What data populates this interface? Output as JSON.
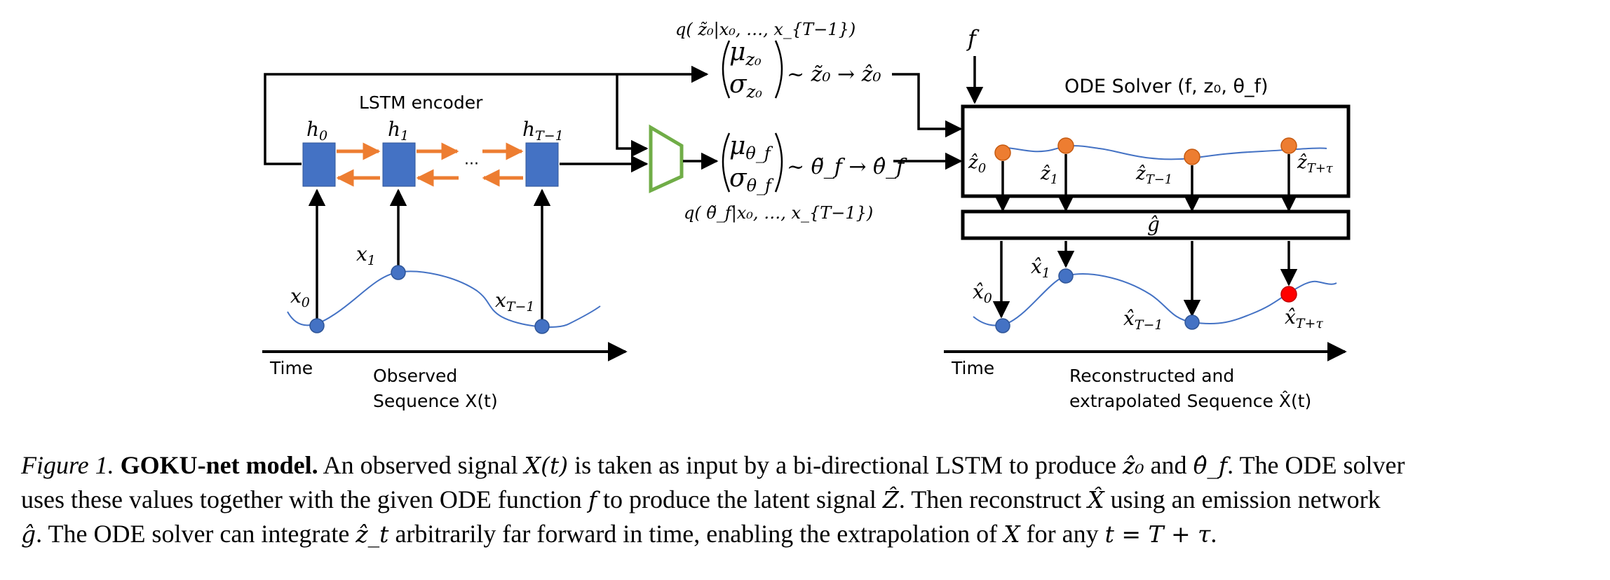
{
  "figure": {
    "lstm_title": "LSTM encoder",
    "hidden_states": [
      "h",
      "h",
      "h"
    ],
    "hidden_subs": [
      "0",
      "1",
      "T−1"
    ],
    "ellipsis": "···",
    "obs_labels": [
      "x",
      "x",
      "x"
    ],
    "obs_subs": [
      "0",
      "1",
      "T−1"
    ],
    "q_z0": "q( z̃₀|x₀, …, x_{T−1})",
    "q_theta": "q( θ̃_f|x₀, …, x_{T−1})",
    "mu_z0": "μ",
    "mu_z0_sub": "z₀",
    "sigma_z0": "σ",
    "sigma_z0_sub": "z₀",
    "sample_z0": "~ z̃₀ → ẑ₀",
    "mu_theta": "μ",
    "mu_theta_sub": "θ_f",
    "sigma_theta": "σ",
    "sigma_theta_sub": "θ_f",
    "sample_theta": "~ θ̃_f → θ̂_f",
    "f_label": "f",
    "ode_title": "ODE Solver (f, z₀, θ_f)",
    "latent_labels": [
      "ẑ",
      "ẑ",
      "ẑ",
      "ẑ"
    ],
    "latent_subs": [
      "0",
      "1",
      "T−1",
      "T+τ"
    ],
    "emission_label": "ĝ",
    "recon_labels": [
      "x̂",
      "x̂",
      "x̂",
      "x̂"
    ],
    "recon_subs": [
      "0",
      "1",
      "T−1",
      "T+τ"
    ],
    "time_left": "Time",
    "time_right": "Time",
    "observed_line1": "Observed",
    "observed_line2": "Sequence X(t)",
    "recon_line1": "Reconstructed and",
    "recon_line2": "extrapolated Sequence X̂(t)"
  },
  "caption": {
    "fig_num": "Figure 1.",
    "bold_title": "GOKU-net model.",
    "l1a": "An observed signal",
    "l1_Xt": "X(t)",
    "l1b": "is taken as input by a bi-directional LSTM to produce",
    "l1_z0": "ẑ₀",
    "l1c": "and",
    "l1_theta": "θ̂_f",
    "l1d": ". The ODE solver",
    "l2a": "uses these values together with the given ODE function",
    "l2_f": "f",
    "l2b": "to produce the latent signal",
    "l2_Z": "Ẑ",
    "l2c": ". Then reconstruct",
    "l2_X": "X̂",
    "l2d": "using an emission network",
    "l3_g": "ĝ",
    "l3a": ". The ODE solver can integrate",
    "l3_zt": "ẑ_t",
    "l3b": "arbitrarily far forward in time, enabling the extrapolation of",
    "l3_X": "X",
    "l3c": "for any",
    "l3_eq": "t = T + τ",
    "l3d": "."
  },
  "colors": {
    "lstm_cell": "#4472C4",
    "bidir_arrow": "#ED7D31",
    "decoder_trapezoid": "#70AD47",
    "latent_point": "#ED7D31",
    "obs_point": "#4472C4",
    "extrapolated_point": "#FF0000",
    "curve": "#4472C4"
  }
}
